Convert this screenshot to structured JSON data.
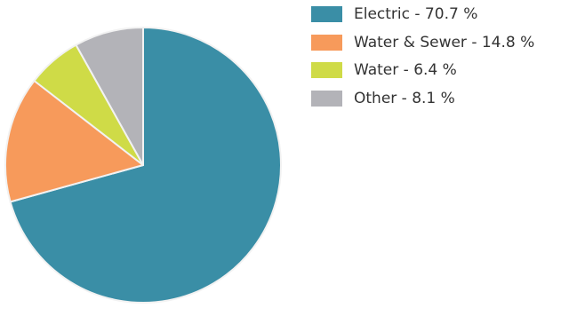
{
  "chart_data": {
    "type": "pie",
    "title": "",
    "slices": [
      {
        "label": "Electric - 70.7 %",
        "category": "Electric",
        "value": 70.7,
        "color": "#3a8ea6"
      },
      {
        "label": "Water & Sewer - 14.8 %",
        "category": "Water & Sewer",
        "value": 14.8,
        "color": "#f79a5b"
      },
      {
        "label": "Water - 6.4 %",
        "category": "Water",
        "value": 6.4,
        "color": "#cfdb47"
      },
      {
        "label": "Other - 8.1 %",
        "category": "Other",
        "value": 8.1,
        "color": "#b3b3b8"
      }
    ],
    "legend_position": "top-right",
    "slice_border_color": "#f2f2f2"
  }
}
